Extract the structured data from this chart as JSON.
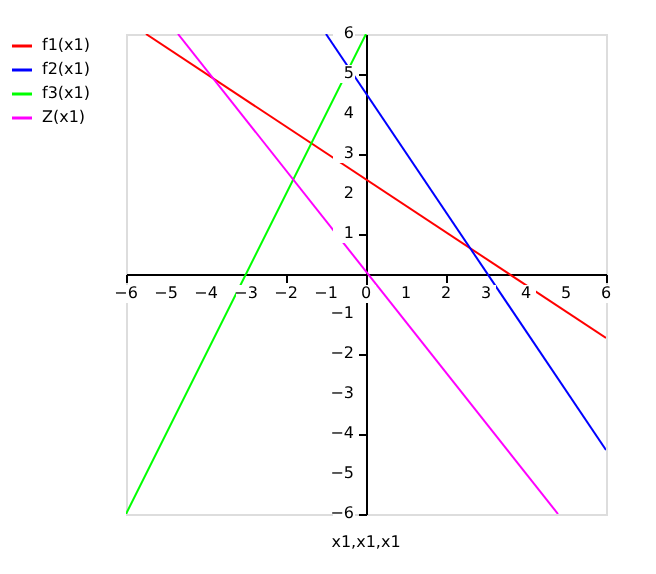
{
  "chart_data": {
    "type": "line",
    "xlabel": "x1,x1,x1",
    "xlim": [
      -6,
      6
    ],
    "ylim": [
      -6,
      6
    ],
    "xticks": [
      -6,
      -5,
      -4,
      -3,
      -2,
      -1,
      0,
      1,
      2,
      3,
      4,
      5,
      6
    ],
    "yticks": [
      -6,
      -5,
      -4,
      -3,
      -2,
      -1,
      1,
      2,
      3,
      4,
      5,
      6
    ],
    "grid": false,
    "legend": "left",
    "marker": "none",
    "line_style": "solid",
    "series": [
      {
        "name": "f1(x1)",
        "color": "#ff0000",
        "x": [
          -5.5,
          6
        ],
        "values": [
          6,
          -1.6
        ]
      },
      {
        "name": "f2(x1)",
        "color": "#0000ff",
        "x": [
          -1,
          6
        ],
        "values": [
          6,
          -4.4
        ]
      },
      {
        "name": "f3(x1)",
        "color": "#00ff00",
        "x": [
          -6,
          0
        ],
        "values": [
          -6,
          6
        ]
      },
      {
        "name": "Z(x1)",
        "color": "#ff00ff",
        "x": [
          -4.7,
          4.8
        ],
        "values": [
          6,
          -6
        ]
      }
    ]
  }
}
